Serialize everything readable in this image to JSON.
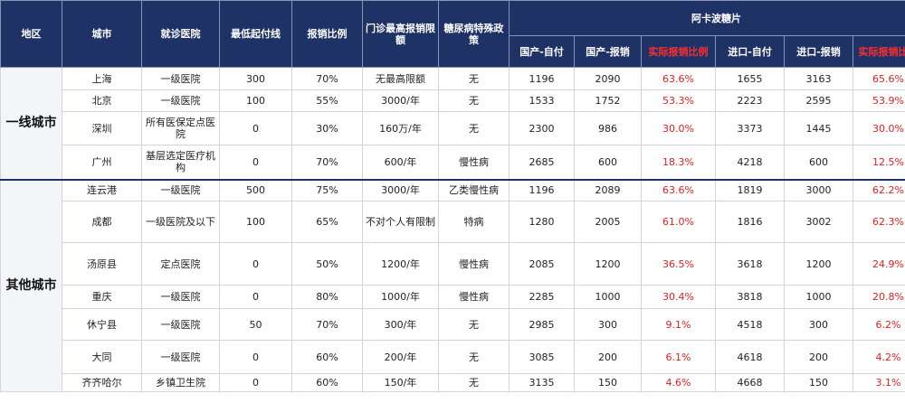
{
  "header": {
    "region": "地区",
    "city": "城市",
    "hospital": "就诊医院",
    "deductible": "最低起付线",
    "reimb_ratio": "报销比例",
    "outpatient_cap": "门诊最高报销限额",
    "diabetes_policy": "糖尿病特殊政策",
    "drug_group": "阿卡波糖片",
    "sub": {
      "dom_self": "国产-自付",
      "dom_reimb": "国产-报销",
      "dom_actual": "实际报销比例",
      "imp_self": "进口-自付",
      "imp_reimb": "进口-报销",
      "imp_actual": "实际报销比例"
    }
  },
  "colors": {
    "header_bg": "#1f3266",
    "header_text": "#ffffff",
    "ratio_red": "#e01e1e"
  },
  "groups": [
    {
      "region": "一线城市",
      "rows": [
        {
          "city": "上海",
          "hospital": "一级医院",
          "deductible": "300",
          "ratio": "70%",
          "cap": "无最高限额",
          "policy": "无",
          "dom_self": "1196",
          "dom_reimb": "2090",
          "dom_actual": "63.6%",
          "imp_self": "1655",
          "imp_reimb": "3163",
          "imp_actual": "65.6%"
        },
        {
          "city": "北京",
          "hospital": "一级医院",
          "deductible": "100",
          "ratio": "55%",
          "cap": "3000/年",
          "policy": "无",
          "dom_self": "1533",
          "dom_reimb": "1752",
          "dom_actual": "53.3%",
          "imp_self": "2223",
          "imp_reimb": "2595",
          "imp_actual": "53.9%"
        },
        {
          "city": "深圳",
          "hospital": "所有医保定点医院",
          "deductible": "0",
          "ratio": "30%",
          "cap": "160万/年",
          "policy": "无",
          "dom_self": "2300",
          "dom_reimb": "986",
          "dom_actual": "30.0%",
          "imp_self": "3373",
          "imp_reimb": "1445",
          "imp_actual": "30.0%"
        },
        {
          "city": "广州",
          "hospital": "基层选定医疗机构",
          "deductible": "0",
          "ratio": "70%",
          "cap": "600/年",
          "policy": "慢性病",
          "dom_self": "2685",
          "dom_reimb": "600",
          "dom_actual": "18.3%",
          "imp_self": "4218",
          "imp_reimb": "600",
          "imp_actual": "12.5%"
        }
      ]
    },
    {
      "region": "其他城市",
      "rows": [
        {
          "city": "连云港",
          "hospital": "一级医院",
          "deductible": "500",
          "ratio": "75%",
          "cap": "3000/年",
          "policy": "乙类慢性病",
          "dom_self": "1196",
          "dom_reimb": "2089",
          "dom_actual": "63.6%",
          "imp_self": "1819",
          "imp_reimb": "3000",
          "imp_actual": "62.2%"
        },
        {
          "city": "成都",
          "hospital": "一级医院及以下",
          "deductible": "100",
          "ratio": "65%",
          "cap": "不对个人有限制",
          "policy": "特病",
          "dom_self": "1280",
          "dom_reimb": "2005",
          "dom_actual": "61.0%",
          "imp_self": "1816",
          "imp_reimb": "3002",
          "imp_actual": "62.3%"
        },
        {
          "city": "汤原县",
          "hospital": "定点医院",
          "deductible": "0",
          "ratio": "50%",
          "cap": "1200/年",
          "policy": "慢性病",
          "dom_self": "2085",
          "dom_reimb": "1200",
          "dom_actual": "36.5%",
          "imp_self": "3618",
          "imp_reimb": "1200",
          "imp_actual": "24.9%"
        },
        {
          "city": "重庆",
          "hospital": "一级医院",
          "deductible": "0",
          "ratio": "80%",
          "cap": "1000/年",
          "policy": "慢性病",
          "dom_self": "2285",
          "dom_reimb": "1000",
          "dom_actual": "30.4%",
          "imp_self": "3818",
          "imp_reimb": "1000",
          "imp_actual": "20.8%"
        },
        {
          "city": "休宁县",
          "hospital": "一级医院",
          "deductible": "50",
          "ratio": "70%",
          "cap": "300/年",
          "policy": "无",
          "dom_self": "2985",
          "dom_reimb": "300",
          "dom_actual": "9.1%",
          "imp_self": "4518",
          "imp_reimb": "300",
          "imp_actual": "6.2%"
        },
        {
          "city": "大同",
          "hospital": "一级医院",
          "deductible": "0",
          "ratio": "60%",
          "cap": "200/年",
          "policy": "无",
          "dom_self": "3085",
          "dom_reimb": "200",
          "dom_actual": "6.1%",
          "imp_self": "4618",
          "imp_reimb": "200",
          "imp_actual": "4.2%"
        },
        {
          "city": "齐齐哈尔",
          "hospital": "乡镇卫生院",
          "deductible": "0",
          "ratio": "60%",
          "cap": "150/年",
          "policy": "无",
          "dom_self": "3135",
          "dom_reimb": "150",
          "dom_actual": "4.6%",
          "imp_self": "4668",
          "imp_reimb": "150",
          "imp_actual": "3.1%"
        }
      ]
    }
  ]
}
